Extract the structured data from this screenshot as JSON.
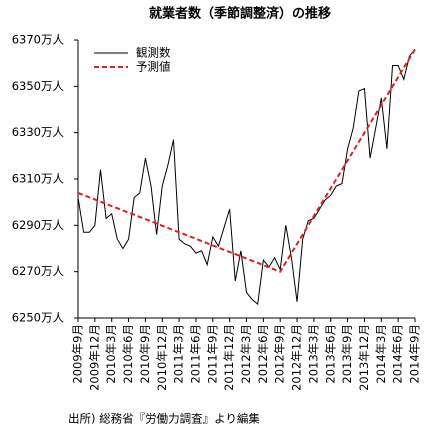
{
  "chart_data": {
    "type": "line",
    "title": "就業者数（季節調整済）の推移",
    "note": "出所) 総務省『労働力調査』より編集",
    "legend": "top-left",
    "grid": false,
    "categories": [
      "2009年9月",
      null,
      null,
      "2009年12月",
      null,
      null,
      "2010年3月",
      null,
      null,
      "2010年6月",
      null,
      null,
      "2010年9月",
      null,
      null,
      "2010年12月",
      null,
      null,
      "2011年3月",
      null,
      null,
      "2011年6月",
      null,
      null,
      "2011年9月",
      null,
      null,
      "2011年12月",
      null,
      null,
      "2012年3月",
      null,
      null,
      "2012年6月",
      null,
      null,
      "2012年9月",
      null,
      null,
      "2012年12月",
      null,
      null,
      "2013年3月",
      null,
      null,
      "2013年6月",
      null,
      null,
      "2013年9月",
      null,
      null,
      "2013年12月",
      null,
      null,
      "2014年3月",
      null,
      null,
      "2014年6月",
      null,
      null,
      "2014年9月"
    ],
    "ylim": [
      6250,
      6370
    ],
    "yticks": [
      {
        "value": 6250,
        "label": "6250万人"
      },
      {
        "value": 6270,
        "label": "6270万人"
      },
      {
        "value": 6290,
        "label": "6290万人"
      },
      {
        "value": 6310,
        "label": "6310万人"
      },
      {
        "value": 6330,
        "label": "6330万人"
      },
      {
        "value": 6350,
        "label": "6350万人"
      },
      {
        "value": 6370,
        "label": "6370万人"
      }
    ],
    "series": [
      {
        "name": "観測数",
        "color": "#000000",
        "style": "solid",
        "values": [
          6302,
          6287,
          6287,
          6290,
          6314,
          6293,
          6295,
          6284,
          6280,
          6284,
          6302,
          6304,
          6319,
          6307,
          6286,
          6307,
          6316,
          6327,
          6284,
          6282,
          6281,
          6278,
          6279,
          6273,
          6285,
          6281,
          6289,
          6297,
          6266,
          6279,
          6261,
          6258,
          6256,
          6275,
          6272,
          6276,
          6271,
          6290,
          6276,
          6257,
          6284,
          6292,
          6293,
          6297,
          6301,
          6303,
          6307,
          6308,
          6323,
          6332,
          6348,
          6349,
          6319,
          6332,
          6345,
          6323,
          6359,
          6359,
          6353,
          6363,
          6366
        ]
      },
      {
        "name": "予測値",
        "color": "#e02020",
        "style": "dashed",
        "values": [
          6304,
          6303.1,
          6302.1,
          6301.2,
          6300.2,
          6299.3,
          6298.3,
          6297.4,
          6296.4,
          6295.5,
          6294.6,
          6293.6,
          6292.7,
          6291.7,
          6290.8,
          6289.8,
          6288.9,
          6287.9,
          6287,
          6286.1,
          6285.1,
          6284.2,
          6283.2,
          6282.3,
          6281.3,
          6280.4,
          6279.4,
          6278.5,
          6277.6,
          6276.6,
          6275.7,
          6274.7,
          6273.8,
          6272.8,
          6271.9,
          6270.9,
          6270,
          6274,
          6278,
          6282,
          6286,
          6290,
          6294,
          6298,
          6302,
          6306,
          6310,
          6314,
          6318,
          6322,
          6326,
          6330,
          6334,
          6338,
          6342,
          6346,
          6350,
          6354,
          6358,
          6362,
          6366
        ]
      }
    ]
  }
}
